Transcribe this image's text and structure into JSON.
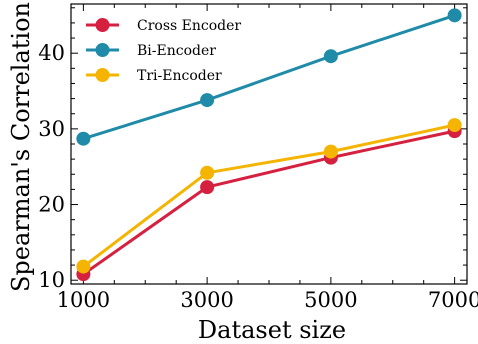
{
  "chart_data": {
    "type": "line",
    "title": "",
    "xlabel": "Dataset size",
    "ylabel": "Spearman's Correlation",
    "x": [
      1000,
      3000,
      5000,
      7000
    ],
    "xlim": [
      800,
      7200
    ],
    "ylim": [
      9.5,
      46.5
    ],
    "xticks": [
      1000,
      3000,
      5000,
      7000
    ],
    "yticks": [
      10,
      20,
      30,
      40
    ],
    "grid": false,
    "legend_position": "top-left",
    "series": [
      {
        "name": "Cross Encoder",
        "color": "#d62040",
        "values": [
          10.8,
          22.3,
          26.2,
          29.7
        ]
      },
      {
        "name": "Bi-Encoder",
        "color": "#1f8ba8",
        "values": [
          28.7,
          33.8,
          39.6,
          45.0
        ]
      },
      {
        "name": "Tri-Encoder",
        "color": "#f4b400",
        "values": [
          11.8,
          24.2,
          27.0,
          30.5
        ]
      }
    ]
  }
}
